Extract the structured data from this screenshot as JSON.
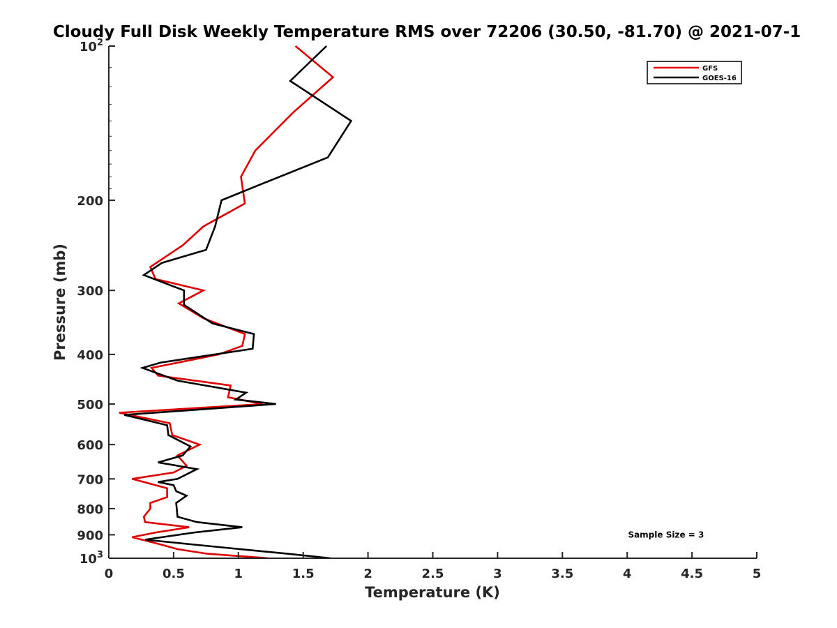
{
  "chart_data": {
    "type": "line",
    "title": "Cloudy Full Disk Weekly Temperature RMS over 72206 (30.50, -81.70) @ 2021-07-1",
    "xlabel": "Temperature (K)",
    "ylabel": "Pressure (mb)",
    "xlim": [
      0,
      5
    ],
    "ylim": [
      100,
      1000
    ],
    "yscale": "log",
    "y_reversed": true,
    "grid": false,
    "legend_position": "top-right",
    "x_ticks": [
      {
        "value": 0,
        "label": "0"
      },
      {
        "value": 0.5,
        "label": "0.5"
      },
      {
        "value": 1,
        "label": "1"
      },
      {
        "value": 1.5,
        "label": "1.5"
      },
      {
        "value": 2,
        "label": "2"
      },
      {
        "value": 2.5,
        "label": "2.5"
      },
      {
        "value": 3,
        "label": "3"
      },
      {
        "value": 3.5,
        "label": "3.5"
      },
      {
        "value": 4,
        "label": "4"
      },
      {
        "value": 4.5,
        "label": "4.5"
      },
      {
        "value": 5,
        "label": "5"
      }
    ],
    "y_ticks": [
      {
        "value": 100,
        "base": "10",
        "exp": "2"
      },
      {
        "value": 200,
        "label": "200"
      },
      {
        "value": 300,
        "label": "300"
      },
      {
        "value": 400,
        "label": "400"
      },
      {
        "value": 500,
        "label": "500"
      },
      {
        "value": 600,
        "label": "600"
      },
      {
        "value": 700,
        "label": "700"
      },
      {
        "value": 800,
        "label": "800"
      },
      {
        "value": 900,
        "label": "900"
      },
      {
        "value": 1000,
        "base": "10",
        "exp": "3"
      }
    ],
    "series": [
      {
        "name": "GFS",
        "color": "#e00000",
        "points": [
          [
            1.44,
            100
          ],
          [
            1.73,
            115
          ],
          [
            1.42,
            135
          ],
          [
            1.13,
            160
          ],
          [
            1.02,
            180
          ],
          [
            1.05,
            203
          ],
          [
            0.73,
            225
          ],
          [
            0.57,
            245
          ],
          [
            0.32,
            270
          ],
          [
            0.36,
            285
          ],
          [
            0.73,
            300
          ],
          [
            0.54,
            318
          ],
          [
            0.73,
            340
          ],
          [
            1.05,
            365
          ],
          [
            1.03,
            385
          ],
          [
            0.85,
            400
          ],
          [
            0.33,
            425
          ],
          [
            0.38,
            440
          ],
          [
            0.94,
            460
          ],
          [
            0.92,
            485
          ],
          [
            1.19,
            500
          ],
          [
            0.08,
            520
          ],
          [
            0.47,
            545
          ],
          [
            0.49,
            575
          ],
          [
            0.7,
            600
          ],
          [
            0.53,
            630
          ],
          [
            0.6,
            660
          ],
          [
            0.5,
            680
          ],
          [
            0.18,
            700
          ],
          [
            0.45,
            730
          ],
          [
            0.45,
            760
          ],
          [
            0.32,
            780
          ],
          [
            0.32,
            800
          ],
          [
            0.27,
            830
          ],
          [
            0.28,
            850
          ],
          [
            0.62,
            870
          ],
          [
            0.37,
            890
          ],
          [
            0.18,
            910
          ],
          [
            0.4,
            940
          ],
          [
            0.53,
            960
          ],
          [
            0.76,
            980
          ],
          [
            1.23,
            1000
          ]
        ]
      },
      {
        "name": "GOES-16",
        "color": "#000000",
        "points": [
          [
            1.68,
            100
          ],
          [
            1.4,
            117
          ],
          [
            1.87,
            140
          ],
          [
            1.69,
            165
          ],
          [
            1.2,
            185
          ],
          [
            0.87,
            200
          ],
          [
            0.82,
            225
          ],
          [
            0.75,
            250
          ],
          [
            0.41,
            265
          ],
          [
            0.27,
            280
          ],
          [
            0.58,
            300
          ],
          [
            0.58,
            320
          ],
          [
            0.8,
            348
          ],
          [
            1.12,
            365
          ],
          [
            1.11,
            390
          ],
          [
            0.4,
            415
          ],
          [
            0.26,
            425
          ],
          [
            0.53,
            450
          ],
          [
            1.06,
            475
          ],
          [
            0.98,
            490
          ],
          [
            1.29,
            500
          ],
          [
            0.12,
            525
          ],
          [
            0.45,
            550
          ],
          [
            0.46,
            575
          ],
          [
            0.63,
            605
          ],
          [
            0.57,
            630
          ],
          [
            0.38,
            650
          ],
          [
            0.68,
            670
          ],
          [
            0.53,
            700
          ],
          [
            0.38,
            710
          ],
          [
            0.5,
            720
          ],
          [
            0.52,
            740
          ],
          [
            0.6,
            755
          ],
          [
            0.52,
            780
          ],
          [
            0.53,
            830
          ],
          [
            0.68,
            850
          ],
          [
            1.03,
            870
          ],
          [
            0.67,
            890
          ],
          [
            0.28,
            920
          ],
          [
            0.74,
            945
          ],
          [
            1.38,
            980
          ],
          [
            1.71,
            1000
          ]
        ]
      }
    ],
    "annotations": [
      {
        "text": "Sample Size = 3",
        "at_temperature": 4.3,
        "at_pressure": 900
      }
    ]
  }
}
